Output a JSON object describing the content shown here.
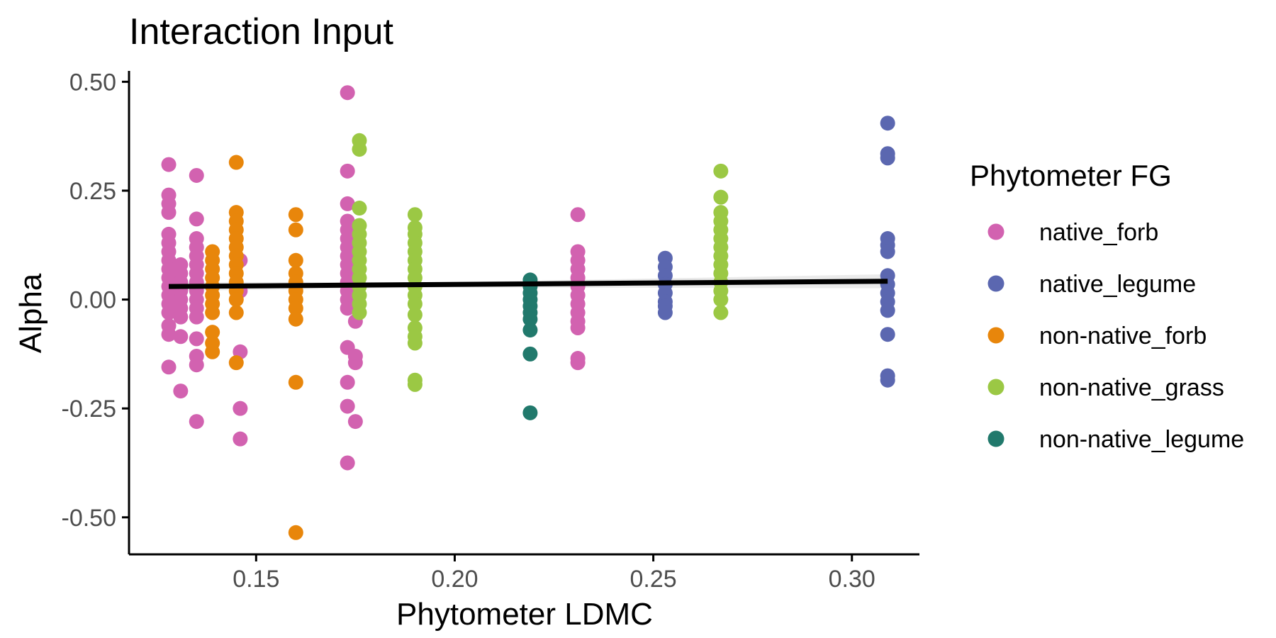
{
  "chart_data": {
    "type": "scatter",
    "title": "Interaction Input",
    "xlabel": "Phytometer LDMC",
    "ylabel": "Alpha",
    "xlim": [
      0.118,
      0.317
    ],
    "ylim": [
      -0.585,
      0.525
    ],
    "x_ticks": [
      {
        "value": 0.15,
        "label": "0.15"
      },
      {
        "value": 0.2,
        "label": "0.20"
      },
      {
        "value": 0.25,
        "label": "0.25"
      },
      {
        "value": 0.3,
        "label": "0.30"
      }
    ],
    "y_ticks": [
      {
        "value": 0.5,
        "label": "0.50"
      },
      {
        "value": 0.25,
        "label": "0.25"
      },
      {
        "value": 0.0,
        "label": "0.00"
      },
      {
        "value": -0.25,
        "label": "-0.25"
      },
      {
        "value": -0.5,
        "label": "-0.50"
      }
    ],
    "grid": false,
    "legend": {
      "title": "Phytometer FG",
      "position": "right"
    },
    "series": [
      {
        "name": "native_forb",
        "color": "#d262b0",
        "points": [
          {
            "x": 0.128,
            "y": 0.31
          },
          {
            "x": 0.128,
            "y": 0.24
          },
          {
            "x": 0.128,
            "y": 0.22
          },
          {
            "x": 0.128,
            "y": 0.2
          },
          {
            "x": 0.128,
            "y": 0.15
          },
          {
            "x": 0.128,
            "y": 0.13
          },
          {
            "x": 0.128,
            "y": 0.11
          },
          {
            "x": 0.128,
            "y": 0.09
          },
          {
            "x": 0.128,
            "y": 0.07
          },
          {
            "x": 0.128,
            "y": 0.05
          },
          {
            "x": 0.128,
            "y": 0.03
          },
          {
            "x": 0.128,
            "y": 0.01
          },
          {
            "x": 0.128,
            "y": -0.01
          },
          {
            "x": 0.128,
            "y": -0.03
          },
          {
            "x": 0.128,
            "y": -0.06
          },
          {
            "x": 0.128,
            "y": -0.08
          },
          {
            "x": 0.128,
            "y": -0.155
          },
          {
            "x": 0.131,
            "y": 0.08
          },
          {
            "x": 0.131,
            "y": 0.06
          },
          {
            "x": 0.131,
            "y": 0.04
          },
          {
            "x": 0.131,
            "y": 0.02
          },
          {
            "x": 0.131,
            "y": 0.0
          },
          {
            "x": 0.131,
            "y": -0.02
          },
          {
            "x": 0.131,
            "y": -0.04
          },
          {
            "x": 0.131,
            "y": -0.085
          },
          {
            "x": 0.131,
            "y": -0.21
          },
          {
            "x": 0.135,
            "y": 0.285
          },
          {
            "x": 0.135,
            "y": 0.185
          },
          {
            "x": 0.135,
            "y": 0.14
          },
          {
            "x": 0.135,
            "y": 0.12
          },
          {
            "x": 0.135,
            "y": 0.1
          },
          {
            "x": 0.135,
            "y": 0.08
          },
          {
            "x": 0.135,
            "y": 0.06
          },
          {
            "x": 0.135,
            "y": 0.04
          },
          {
            "x": 0.135,
            "y": 0.02
          },
          {
            "x": 0.135,
            "y": 0.0
          },
          {
            "x": 0.135,
            "y": -0.02
          },
          {
            "x": 0.135,
            "y": -0.04
          },
          {
            "x": 0.135,
            "y": -0.09
          },
          {
            "x": 0.135,
            "y": -0.13
          },
          {
            "x": 0.135,
            "y": -0.15
          },
          {
            "x": 0.135,
            "y": -0.28
          },
          {
            "x": 0.146,
            "y": 0.09
          },
          {
            "x": 0.146,
            "y": 0.02
          },
          {
            "x": 0.146,
            "y": -0.12
          },
          {
            "x": 0.146,
            "y": -0.25
          },
          {
            "x": 0.146,
            "y": -0.32
          },
          {
            "x": 0.173,
            "y": 0.475
          },
          {
            "x": 0.173,
            "y": 0.295
          },
          {
            "x": 0.173,
            "y": 0.22
          },
          {
            "x": 0.173,
            "y": 0.18
          },
          {
            "x": 0.173,
            "y": 0.16
          },
          {
            "x": 0.173,
            "y": 0.14
          },
          {
            "x": 0.173,
            "y": 0.12
          },
          {
            "x": 0.173,
            "y": 0.1
          },
          {
            "x": 0.173,
            "y": 0.08
          },
          {
            "x": 0.173,
            "y": 0.06
          },
          {
            "x": 0.173,
            "y": 0.04
          },
          {
            "x": 0.173,
            "y": 0.02
          },
          {
            "x": 0.173,
            "y": 0.0
          },
          {
            "x": 0.173,
            "y": -0.02
          },
          {
            "x": 0.173,
            "y": -0.11
          },
          {
            "x": 0.173,
            "y": -0.19
          },
          {
            "x": 0.173,
            "y": -0.245
          },
          {
            "x": 0.173,
            "y": -0.375
          },
          {
            "x": 0.175,
            "y": 0.08
          },
          {
            "x": 0.175,
            "y": 0.05
          },
          {
            "x": 0.175,
            "y": 0.02
          },
          {
            "x": 0.175,
            "y": -0.01
          },
          {
            "x": 0.175,
            "y": -0.05
          },
          {
            "x": 0.175,
            "y": -0.13
          },
          {
            "x": 0.175,
            "y": -0.145
          },
          {
            "x": 0.175,
            "y": -0.28
          },
          {
            "x": 0.231,
            "y": 0.195
          },
          {
            "x": 0.231,
            "y": 0.11
          },
          {
            "x": 0.231,
            "y": 0.09
          },
          {
            "x": 0.231,
            "y": 0.07
          },
          {
            "x": 0.231,
            "y": 0.05
          },
          {
            "x": 0.231,
            "y": 0.03
          },
          {
            "x": 0.231,
            "y": 0.01
          },
          {
            "x": 0.231,
            "y": -0.01
          },
          {
            "x": 0.231,
            "y": -0.03
          },
          {
            "x": 0.231,
            "y": -0.05
          },
          {
            "x": 0.231,
            "y": -0.065
          },
          {
            "x": 0.231,
            "y": -0.135
          },
          {
            "x": 0.231,
            "y": -0.145
          }
        ]
      },
      {
        "name": "native_legume",
        "color": "#5b67b0",
        "points": [
          {
            "x": 0.253,
            "y": 0.095
          },
          {
            "x": 0.253,
            "y": 0.075
          },
          {
            "x": 0.253,
            "y": 0.055
          },
          {
            "x": 0.253,
            "y": 0.035
          },
          {
            "x": 0.253,
            "y": 0.015
          },
          {
            "x": 0.253,
            "y": -0.005
          },
          {
            "x": 0.253,
            "y": -0.015
          },
          {
            "x": 0.253,
            "y": -0.03
          },
          {
            "x": 0.309,
            "y": 0.405
          },
          {
            "x": 0.309,
            "y": 0.335
          },
          {
            "x": 0.309,
            "y": 0.325
          },
          {
            "x": 0.309,
            "y": 0.14
          },
          {
            "x": 0.309,
            "y": 0.125
          },
          {
            "x": 0.309,
            "y": 0.11
          },
          {
            "x": 0.309,
            "y": 0.055
          },
          {
            "x": 0.309,
            "y": 0.035
          },
          {
            "x": 0.309,
            "y": 0.015
          },
          {
            "x": 0.309,
            "y": -0.005
          },
          {
            "x": 0.309,
            "y": -0.025
          },
          {
            "x": 0.309,
            "y": -0.08
          },
          {
            "x": 0.309,
            "y": -0.175
          },
          {
            "x": 0.309,
            "y": -0.185
          }
        ]
      },
      {
        "name": "non-native_forb",
        "color": "#e8860b",
        "points": [
          {
            "x": 0.139,
            "y": 0.11
          },
          {
            "x": 0.139,
            "y": 0.09
          },
          {
            "x": 0.139,
            "y": 0.07
          },
          {
            "x": 0.139,
            "y": 0.05
          },
          {
            "x": 0.139,
            "y": 0.03
          },
          {
            "x": 0.139,
            "y": 0.01
          },
          {
            "x": 0.139,
            "y": -0.01
          },
          {
            "x": 0.139,
            "y": -0.03
          },
          {
            "x": 0.139,
            "y": -0.075
          },
          {
            "x": 0.139,
            "y": -0.1
          },
          {
            "x": 0.139,
            "y": -0.12
          },
          {
            "x": 0.145,
            "y": 0.315
          },
          {
            "x": 0.145,
            "y": 0.2
          },
          {
            "x": 0.145,
            "y": 0.18
          },
          {
            "x": 0.145,
            "y": 0.16
          },
          {
            "x": 0.145,
            "y": 0.14
          },
          {
            "x": 0.145,
            "y": 0.12
          },
          {
            "x": 0.145,
            "y": 0.1
          },
          {
            "x": 0.145,
            "y": 0.08
          },
          {
            "x": 0.145,
            "y": 0.06
          },
          {
            "x": 0.145,
            "y": 0.04
          },
          {
            "x": 0.145,
            "y": 0.02
          },
          {
            "x": 0.145,
            "y": 0.0
          },
          {
            "x": 0.145,
            "y": -0.03
          },
          {
            "x": 0.145,
            "y": -0.145
          },
          {
            "x": 0.16,
            "y": 0.195
          },
          {
            "x": 0.16,
            "y": 0.16
          },
          {
            "x": 0.16,
            "y": 0.09
          },
          {
            "x": 0.16,
            "y": 0.06
          },
          {
            "x": 0.16,
            "y": 0.04
          },
          {
            "x": 0.16,
            "y": 0.02
          },
          {
            "x": 0.16,
            "y": 0.0
          },
          {
            "x": 0.16,
            "y": -0.02
          },
          {
            "x": 0.16,
            "y": -0.045
          },
          {
            "x": 0.16,
            "y": -0.19
          },
          {
            "x": 0.16,
            "y": -0.535
          }
        ]
      },
      {
        "name": "non-native_grass",
        "color": "#9bc844",
        "points": [
          {
            "x": 0.176,
            "y": 0.365
          },
          {
            "x": 0.176,
            "y": 0.345
          },
          {
            "x": 0.176,
            "y": 0.21
          },
          {
            "x": 0.176,
            "y": 0.17
          },
          {
            "x": 0.176,
            "y": 0.15
          },
          {
            "x": 0.176,
            "y": 0.13
          },
          {
            "x": 0.176,
            "y": 0.11
          },
          {
            "x": 0.176,
            "y": 0.09
          },
          {
            "x": 0.176,
            "y": 0.07
          },
          {
            "x": 0.176,
            "y": 0.05
          },
          {
            "x": 0.176,
            "y": 0.03
          },
          {
            "x": 0.176,
            "y": 0.01
          },
          {
            "x": 0.176,
            "y": -0.01
          },
          {
            "x": 0.176,
            "y": -0.03
          },
          {
            "x": 0.19,
            "y": 0.195
          },
          {
            "x": 0.19,
            "y": 0.165
          },
          {
            "x": 0.19,
            "y": 0.15
          },
          {
            "x": 0.19,
            "y": 0.13
          },
          {
            "x": 0.19,
            "y": 0.11
          },
          {
            "x": 0.19,
            "y": 0.09
          },
          {
            "x": 0.19,
            "y": 0.07
          },
          {
            "x": 0.19,
            "y": 0.05
          },
          {
            "x": 0.19,
            "y": 0.03
          },
          {
            "x": 0.19,
            "y": 0.01
          },
          {
            "x": 0.19,
            "y": -0.01
          },
          {
            "x": 0.19,
            "y": -0.035
          },
          {
            "x": 0.19,
            "y": -0.065
          },
          {
            "x": 0.19,
            "y": -0.085
          },
          {
            "x": 0.19,
            "y": -0.1
          },
          {
            "x": 0.19,
            "y": -0.185
          },
          {
            "x": 0.19,
            "y": -0.195
          },
          {
            "x": 0.267,
            "y": 0.295
          },
          {
            "x": 0.267,
            "y": 0.235
          },
          {
            "x": 0.267,
            "y": 0.2
          },
          {
            "x": 0.267,
            "y": 0.18
          },
          {
            "x": 0.267,
            "y": 0.16
          },
          {
            "x": 0.267,
            "y": 0.14
          },
          {
            "x": 0.267,
            "y": 0.12
          },
          {
            "x": 0.267,
            "y": 0.1
          },
          {
            "x": 0.267,
            "y": 0.08
          },
          {
            "x": 0.267,
            "y": 0.06
          },
          {
            "x": 0.267,
            "y": 0.04
          },
          {
            "x": 0.267,
            "y": 0.02
          },
          {
            "x": 0.267,
            "y": 0.0
          },
          {
            "x": 0.267,
            "y": -0.03
          }
        ]
      },
      {
        "name": "non-native_legume",
        "color": "#21796c",
        "points": [
          {
            "x": 0.219,
            "y": 0.045
          },
          {
            "x": 0.219,
            "y": 0.03
          },
          {
            "x": 0.219,
            "y": 0.015
          },
          {
            "x": 0.219,
            "y": 0.0
          },
          {
            "x": 0.219,
            "y": -0.015
          },
          {
            "x": 0.219,
            "y": -0.03
          },
          {
            "x": 0.219,
            "y": -0.045
          },
          {
            "x": 0.219,
            "y": -0.07
          },
          {
            "x": 0.219,
            "y": -0.125
          },
          {
            "x": 0.219,
            "y": -0.26
          }
        ]
      }
    ],
    "trend_line": {
      "color": "#000000",
      "band_color": "#ebebeb",
      "points": [
        {
          "x": 0.128,
          "y": 0.03
        },
        {
          "x": 0.309,
          "y": 0.042
        }
      ],
      "band": [
        {
          "x": 0.128,
          "low": 0.02,
          "high": 0.04
        },
        {
          "x": 0.2,
          "low": 0.028,
          "high": 0.04
        },
        {
          "x": 0.309,
          "low": 0.026,
          "high": 0.058
        }
      ]
    }
  }
}
